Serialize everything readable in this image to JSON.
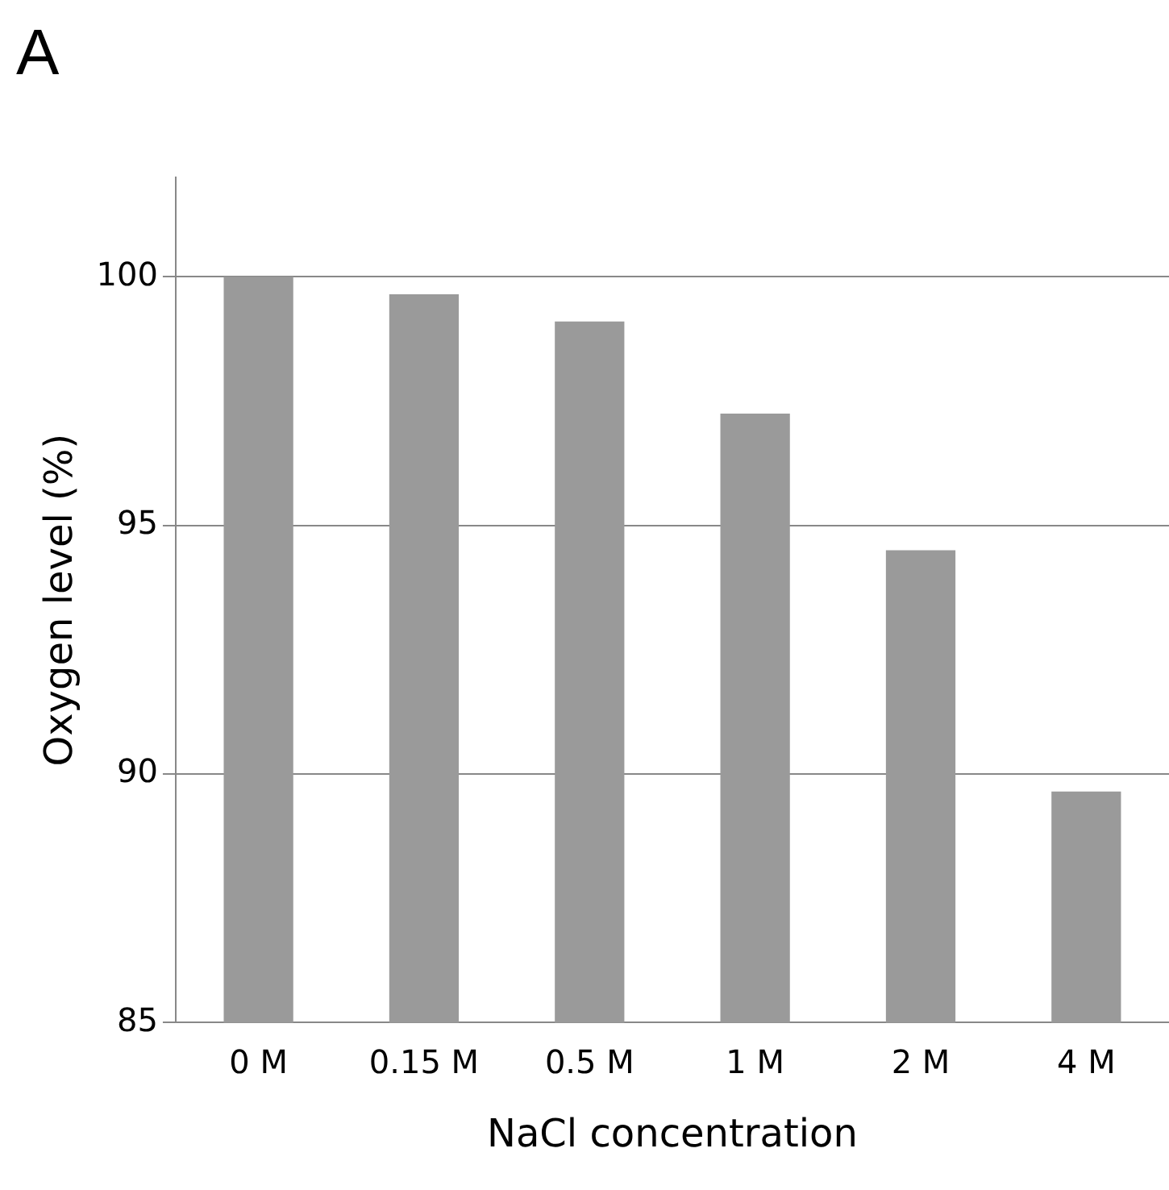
{
  "chart_data": {
    "type": "bar",
    "xlabel": "NaCl concentration",
    "ylabel": "Oxygen level (%)",
    "annotations": [
      "A"
    ],
    "categories": [
      "0 M",
      "0.15 M",
      "0.5 M",
      "1 M",
      "2 M",
      "4 M"
    ],
    "values": [
      100,
      99.65,
      99.1,
      97.25,
      94.5,
      89.65
    ],
    "color": "#9a9a9a",
    "ylim": [
      85,
      102
    ],
    "yticks": [
      85,
      90,
      95,
      100
    ],
    "grid": "y",
    "legend": false
  }
}
